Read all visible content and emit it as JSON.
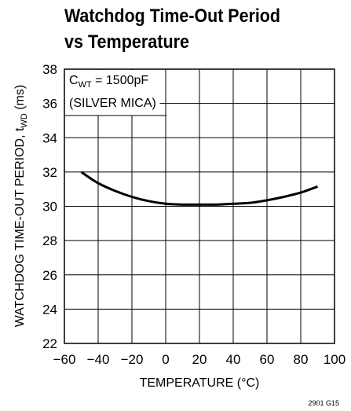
{
  "figure_id": "2901 G15",
  "chart_data": {
    "type": "line",
    "title_line1": "Watchdog Time-Out Period",
    "title_line2": "vs Temperature",
    "xlabel": "TEMPERATURE (°C)",
    "ylabel": {
      "main": "WATCHDOG TIME-OUT PERIOD, t",
      "sub": "WD",
      "unit": " (ms)"
    },
    "xlim": [
      -60,
      100
    ],
    "ylim": [
      22,
      38
    ],
    "x_ticks": [
      -60,
      -40,
      -20,
      0,
      20,
      40,
      60,
      80,
      100
    ],
    "x_tick_labels": [
      "−60",
      "−40",
      "−20",
      "0",
      "20",
      "40",
      "60",
      "80",
      "100"
    ],
    "y_ticks": [
      22,
      24,
      26,
      28,
      30,
      32,
      34,
      36,
      38
    ],
    "y_tick_labels": [
      "22",
      "24",
      "26",
      "28",
      "30",
      "32",
      "34",
      "36",
      "38"
    ],
    "grid": true,
    "annotation": {
      "symbol": "C",
      "subscript": "WT",
      "value": " = 1500pF",
      "note": "(SILVER MICA)"
    },
    "series": [
      {
        "x": [
          -50,
          -40,
          -30,
          -20,
          -10,
          0,
          10,
          20,
          30,
          40,
          50,
          60,
          70,
          80,
          90
        ],
        "y": [
          32.0,
          31.35,
          30.9,
          30.55,
          30.3,
          30.15,
          30.1,
          30.1,
          30.1,
          30.15,
          30.2,
          30.35,
          30.55,
          30.8,
          31.15
        ]
      }
    ]
  }
}
